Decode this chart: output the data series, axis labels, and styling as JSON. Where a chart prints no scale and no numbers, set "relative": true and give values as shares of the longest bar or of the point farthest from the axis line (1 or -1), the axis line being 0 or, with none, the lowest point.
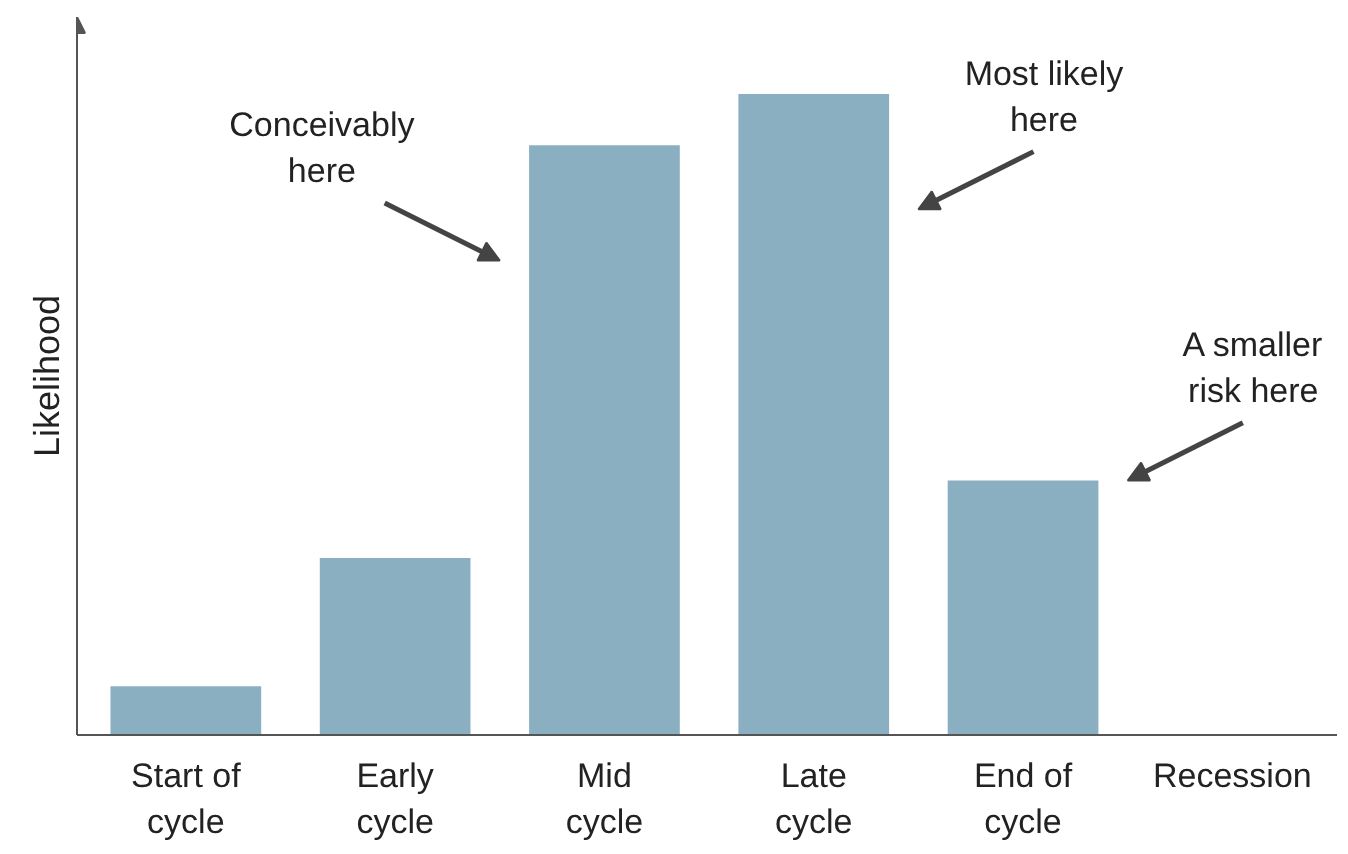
{
  "chart_data": {
    "type": "bar",
    "relative": true,
    "ylabel": "Likelihood",
    "color": "#8aafc0",
    "categories": [
      "Start of\ncycle",
      "Early\ncycle",
      "Mid\ncycle",
      "Late\ncycle",
      "End of\ncycle",
      "Recession"
    ],
    "values": [
      0.076,
      0.276,
      0.92,
      1,
      0.397,
      0
    ],
    "annotations": [
      "Conceivably\nhere",
      "Most likely\nhere",
      "A smaller\nrisk here"
    ],
    "grid": false
  }
}
